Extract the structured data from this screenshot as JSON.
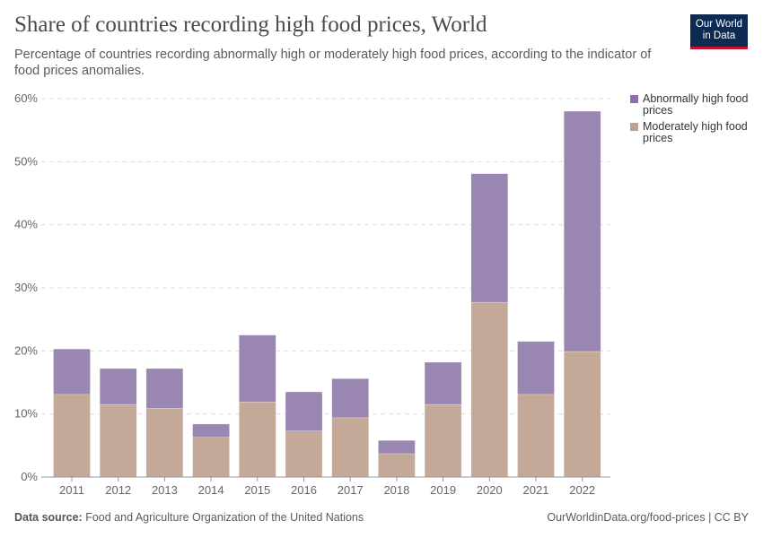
{
  "title": "Share of countries recording high food prices, World",
  "subtitle": "Percentage of countries recording abnormally high or moderately high food prices, according to the indicator of food prices anomalies.",
  "logo": {
    "line1": "Our World",
    "line2": "in Data"
  },
  "footer": {
    "source_label": "Data source:",
    "source": "Food and Agriculture Organization of the United Nations",
    "link": "OurWorldinData.org/food-prices | CC BY"
  },
  "chart_data": {
    "type": "bar",
    "stacked": true,
    "title": "Share of countries recording high food prices, World",
    "xlabel": "",
    "ylabel": "",
    "ylim": [
      0,
      60
    ],
    "yticks": [
      "0%",
      "10%",
      "20%",
      "30%",
      "40%",
      "50%",
      "60%"
    ],
    "grid": true,
    "legend_position": "right",
    "categories": [
      "2011",
      "2012",
      "2013",
      "2014",
      "2015",
      "2016",
      "2017",
      "2018",
      "2019",
      "2020",
      "2021",
      "2022"
    ],
    "series": [
      {
        "name": "Moderately high food prices",
        "color": "#c4a898",
        "values": [
          13.1,
          11.5,
          10.9,
          6.3,
          11.9,
          7.3,
          9.4,
          3.7,
          11.5,
          27.7,
          13.1,
          19.9
        ]
      },
      {
        "name": "Abnormally high food prices",
        "color": "#9a87b1",
        "values": [
          7.2,
          5.7,
          6.3,
          2.1,
          10.6,
          6.2,
          6.2,
          2.1,
          6.7,
          20.4,
          8.4,
          38.1
        ]
      }
    ]
  }
}
